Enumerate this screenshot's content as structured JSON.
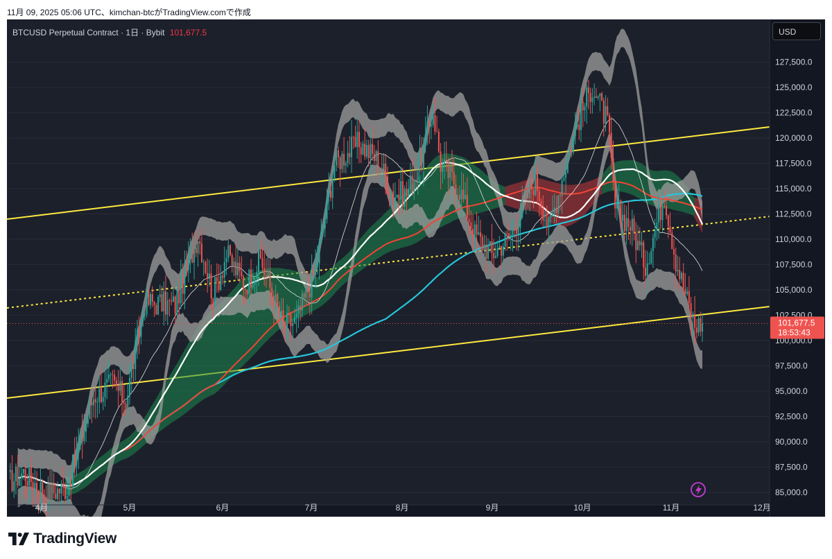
{
  "caption": "11月 09, 2025 05:06 UTC、kimchan-btcがTradingView.comで作成",
  "symbol": {
    "name": "BTCUSD Perpetual Contract",
    "interval": "1日",
    "exchange": "Bybit",
    "last_price": "101,677.5"
  },
  "currency_button": "USD",
  "price_tag": {
    "price": "101,677.5",
    "countdown": "18:53:43"
  },
  "brand": "TradingView",
  "icons": {
    "brand_logo": "tradingview-logo-icon",
    "alert": "lightning-icon"
  },
  "colors": {
    "background": "#131722",
    "up": "#26a69a",
    "down": "#ef5350",
    "channel": "#ffeb3b",
    "ma_fast": "#ffffff",
    "ma_mid": "#f44336",
    "ma_slow": "#26c6da",
    "cloud_bull": "#1b8a4e",
    "cloud_bear": "#c0393b",
    "bands": "#9e9e9e"
  },
  "chart_data": {
    "type": "candlestick",
    "title": "BTCUSD Perpetual Contract · 1日 · Bybit",
    "price_axis": {
      "range": [
        84600,
        128600
      ],
      "ticks": [
        "85,000.0",
        "87,500.0",
        "90,000.0",
        "92,500.0",
        "95,000.0",
        "97,500.0",
        "100,000.0",
        "102,500.0",
        "105,000.0",
        "107,500.0",
        "110,000.0",
        "112,500.0",
        "115,000.0",
        "117,500.0",
        "120,000.0",
        "122,500.0",
        "125,000.0",
        "127,500.0"
      ],
      "position": "right"
    },
    "time_axis": {
      "ticks": [
        "4月",
        "5月",
        "6月",
        "7月",
        "8月",
        "9月",
        "10月",
        "11月",
        "12月"
      ]
    },
    "candle_path": {
      "description": "approximate daily closes, March to early November",
      "points": [
        [
          0,
          86000
        ],
        [
          8,
          87000
        ],
        [
          20,
          84900
        ],
        [
          31,
          85500
        ],
        [
          45,
          94500
        ],
        [
          55,
          95800
        ],
        [
          62,
          94000
        ],
        [
          72,
          103800
        ],
        [
          88,
          103500
        ],
        [
          100,
          110500
        ],
        [
          108,
          104500
        ],
        [
          115,
          108500
        ],
        [
          125,
          105500
        ],
        [
          133,
          108000
        ],
        [
          145,
          101500
        ],
        [
          152,
          102000
        ],
        [
          162,
          107000
        ],
        [
          172,
          117500
        ],
        [
          185,
          119500
        ],
        [
          195,
          117800
        ],
        [
          203,
          114500
        ],
        [
          210,
          114500
        ],
        [
          218,
          118000
        ],
        [
          224,
          122800
        ],
        [
          228,
          117500
        ],
        [
          238,
          115000
        ],
        [
          246,
          110500
        ],
        [
          255,
          108500
        ],
        [
          265,
          110500
        ],
        [
          278,
          116000
        ],
        [
          285,
          111000
        ],
        [
          292,
          116000
        ],
        [
          300,
          121500
        ],
        [
          308,
          125200
        ],
        [
          316,
          121500
        ],
        [
          320,
          113000
        ],
        [
          328,
          111500
        ],
        [
          336,
          107500
        ],
        [
          346,
          114500
        ],
        [
          352,
          108000
        ],
        [
          358,
          104000
        ],
        [
          362,
          101500
        ],
        [
          366,
          101700
        ]
      ]
    },
    "last_price": 101677.5,
    "overlays": [
      "upper channel line",
      "lower channel line",
      "dotted channel midline",
      "moving average (white)",
      "moving average (red)",
      "moving average (cyan)",
      "green/red ribbon cloud",
      "grey envelope bands"
    ]
  }
}
